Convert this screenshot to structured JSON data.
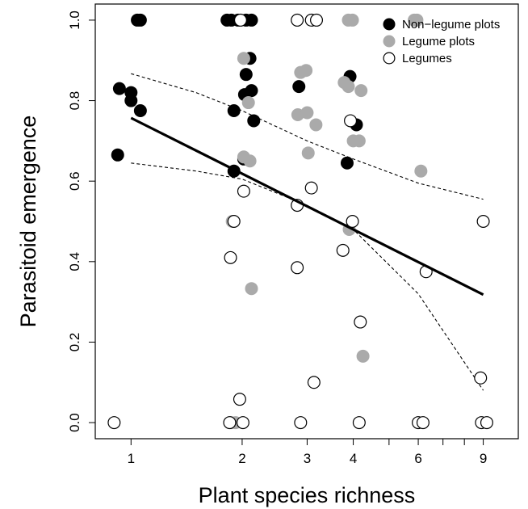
{
  "chart_data": {
    "type": "scatter",
    "xlabel": "Plant species richness",
    "ylabel": "Parasitoid emergence",
    "x_scale": "log",
    "xlim": [
      0.8,
      11.2
    ],
    "ylim": [
      -0.04,
      1.04
    ],
    "x_ticks": [
      1,
      2,
      3,
      4,
      6,
      9
    ],
    "x_tick_labels": [
      "1",
      "2",
      "3",
      "4",
      "6",
      "9"
    ],
    "x_minor_ticks": [
      5,
      7,
      8
    ],
    "y_ticks": [
      0.0,
      0.2,
      0.4,
      0.6,
      0.8,
      1.0
    ],
    "y_tick_labels": [
      "0.0",
      "0.2",
      "0.4",
      "0.6",
      "0.8",
      "1.0"
    ],
    "grid": false,
    "legend": {
      "placement": "top-right",
      "entries": [
        {
          "label": "Non−legume plots",
          "marker": "filled-black"
        },
        {
          "label": "Legume plots",
          "marker": "filled-grey"
        },
        {
          "label": "Legumes",
          "marker": "open"
        }
      ]
    },
    "colors": {
      "non_legume": "#000000",
      "legume_plots": "#aaaaaa",
      "legumes": "#000000"
    },
    "series": [
      {
        "name": "Non−legume plots",
        "marker": "filled-black",
        "points": [
          {
            "x": 1.04,
            "y": 1.0
          },
          {
            "x": 1.06,
            "y": 1.0
          },
          {
            "x": 0.93,
            "y": 0.83
          },
          {
            "x": 1.0,
            "y": 0.82
          },
          {
            "x": 1.0,
            "y": 0.8
          },
          {
            "x": 1.06,
            "y": 0.775
          },
          {
            "x": 0.92,
            "y": 0.665
          },
          {
            "x": 1.82,
            "y": 1.0
          },
          {
            "x": 1.87,
            "y": 1.0
          },
          {
            "x": 1.95,
            "y": 1.0
          },
          {
            "x": 2.05,
            "y": 1.0
          },
          {
            "x": 2.12,
            "y": 1.0
          },
          {
            "x": 2.1,
            "y": 0.905
          },
          {
            "x": 2.05,
            "y": 0.865
          },
          {
            "x": 2.12,
            "y": 0.825
          },
          {
            "x": 2.03,
            "y": 0.815
          },
          {
            "x": 1.9,
            "y": 0.775
          },
          {
            "x": 2.15,
            "y": 0.75
          },
          {
            "x": 2.02,
            "y": 0.655
          },
          {
            "x": 1.9,
            "y": 0.625
          },
          {
            "x": 2.85,
            "y": 0.835
          },
          {
            "x": 3.92,
            "y": 0.86
          },
          {
            "x": 4.08,
            "y": 0.74
          },
          {
            "x": 3.85,
            "y": 0.645
          }
        ]
      },
      {
        "name": "Legume plots",
        "marker": "filled-grey",
        "points": [
          {
            "x": 2.02,
            "y": 0.905
          },
          {
            "x": 2.08,
            "y": 0.795
          },
          {
            "x": 2.02,
            "y": 0.66
          },
          {
            "x": 2.1,
            "y": 0.65
          },
          {
            "x": 1.88,
            "y": 0.5
          },
          {
            "x": 2.12,
            "y": 0.333
          },
          {
            "x": 1.87,
            "y": 0.0
          },
          {
            "x": 1.92,
            "y": 0.0
          },
          {
            "x": 2.88,
            "y": 0.87
          },
          {
            "x": 2.98,
            "y": 0.875
          },
          {
            "x": 2.83,
            "y": 0.765
          },
          {
            "x": 3.0,
            "y": 0.77
          },
          {
            "x": 3.17,
            "y": 0.74
          },
          {
            "x": 3.02,
            "y": 0.67
          },
          {
            "x": 3.88,
            "y": 1.0
          },
          {
            "x": 3.98,
            "y": 1.0
          },
          {
            "x": 3.78,
            "y": 0.845
          },
          {
            "x": 3.88,
            "y": 0.835
          },
          {
            "x": 4.2,
            "y": 0.825
          },
          {
            "x": 4.0,
            "y": 0.7
          },
          {
            "x": 4.15,
            "y": 0.7
          },
          {
            "x": 3.9,
            "y": 0.48
          },
          {
            "x": 4.25,
            "y": 0.165
          },
          {
            "x": 5.85,
            "y": 1.0
          },
          {
            "x": 5.95,
            "y": 1.0
          },
          {
            "x": 6.1,
            "y": 0.625
          }
        ]
      },
      {
        "name": "Legumes",
        "marker": "open",
        "points": [
          {
            "x": 0.9,
            "y": 0.0
          },
          {
            "x": 1.98,
            "y": 1.0
          },
          {
            "x": 2.02,
            "y": 0.575
          },
          {
            "x": 1.9,
            "y": 0.5
          },
          {
            "x": 1.86,
            "y": 0.41
          },
          {
            "x": 1.97,
            "y": 0.058
          },
          {
            "x": 1.85,
            "y": 0.0
          },
          {
            "x": 2.01,
            "y": 0.0
          },
          {
            "x": 2.82,
            "y": 1.0
          },
          {
            "x": 3.08,
            "y": 1.0
          },
          {
            "x": 3.18,
            "y": 1.0
          },
          {
            "x": 3.08,
            "y": 0.583
          },
          {
            "x": 2.82,
            "y": 0.54
          },
          {
            "x": 2.82,
            "y": 0.385
          },
          {
            "x": 3.13,
            "y": 0.1
          },
          {
            "x": 2.88,
            "y": 0.0
          },
          {
            "x": 3.93,
            "y": 0.75
          },
          {
            "x": 3.98,
            "y": 0.5
          },
          {
            "x": 3.75,
            "y": 0.428
          },
          {
            "x": 4.18,
            "y": 0.25
          },
          {
            "x": 4.15,
            "y": 0.0
          },
          {
            "x": 6.3,
            "y": 0.375
          },
          {
            "x": 6.0,
            "y": 0.0
          },
          {
            "x": 6.18,
            "y": 0.0
          },
          {
            "x": 9.0,
            "y": 0.5
          },
          {
            "x": 8.85,
            "y": 0.111
          },
          {
            "x": 8.9,
            "y": 0.0
          },
          {
            "x": 9.2,
            "y": 0.0
          }
        ]
      }
    ],
    "fit": {
      "line": [
        {
          "x": 1.0,
          "y": 0.757
        },
        {
          "x": 9.0,
          "y": 0.318
        }
      ],
      "ci_upper": [
        {
          "x": 1.0,
          "y": 0.867
        },
        {
          "x": 1.5,
          "y": 0.82
        },
        {
          "x": 2.0,
          "y": 0.775
        },
        {
          "x": 3.0,
          "y": 0.7
        },
        {
          "x": 4.0,
          "y": 0.655
        },
        {
          "x": 6.0,
          "y": 0.595
        },
        {
          "x": 9.0,
          "y": 0.555
        }
      ],
      "ci_lower": [
        {
          "x": 1.0,
          "y": 0.645
        },
        {
          "x": 1.5,
          "y": 0.625
        },
        {
          "x": 2.0,
          "y": 0.605
        },
        {
          "x": 3.0,
          "y": 0.54
        },
        {
          "x": 4.0,
          "y": 0.48
        },
        {
          "x": 6.0,
          "y": 0.32
        },
        {
          "x": 9.0,
          "y": 0.08
        }
      ]
    }
  }
}
